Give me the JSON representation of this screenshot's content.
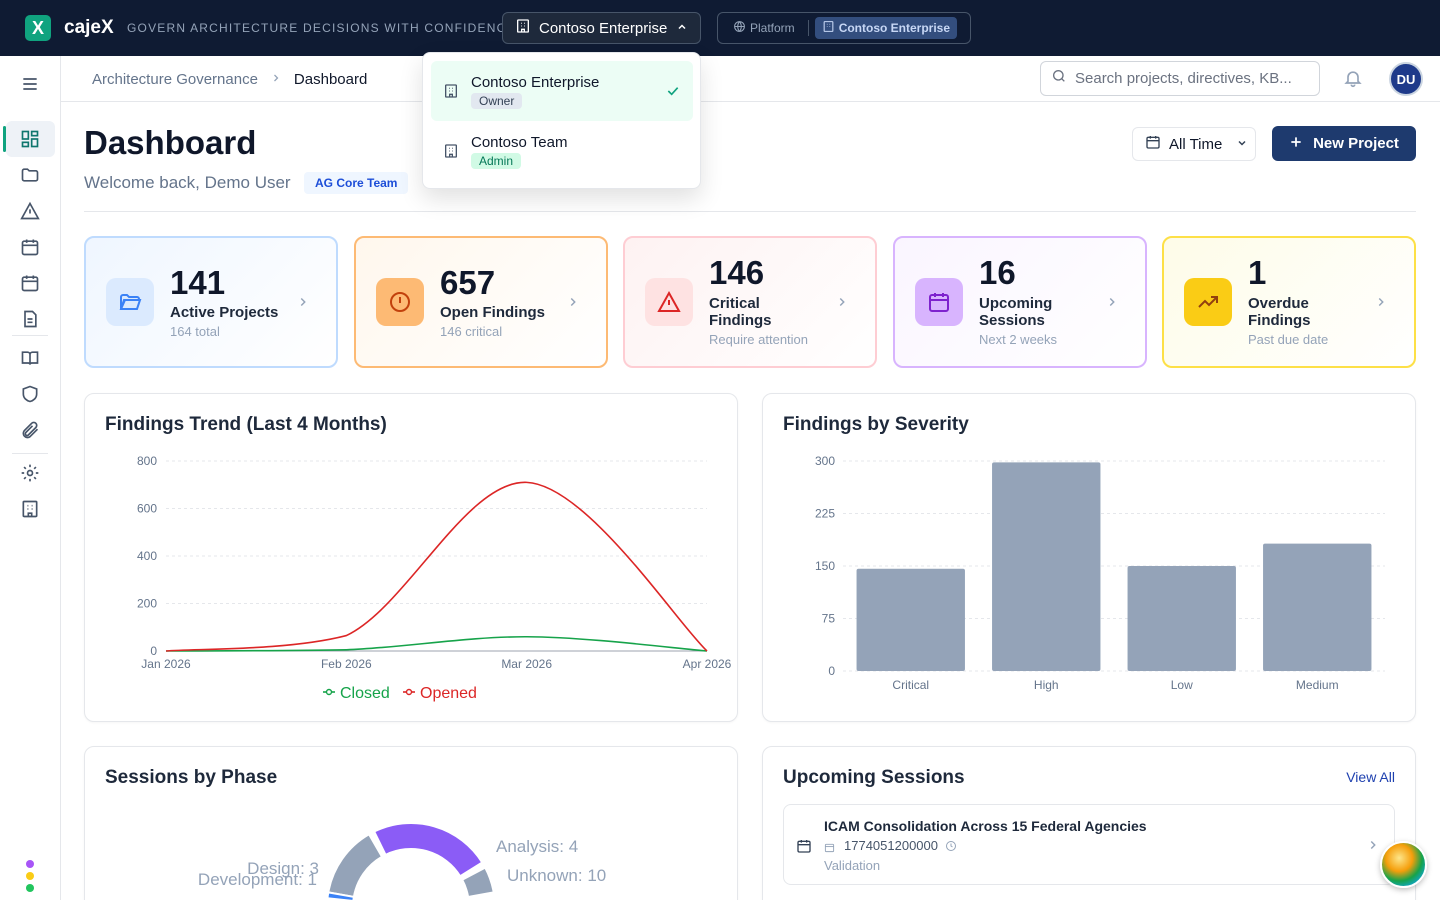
{
  "app": {
    "brand": "cajeX",
    "logo_letter": "X",
    "tagline": "GOVERN ARCHITECTURE DECISIONS WITH CONFIDENCE",
    "org_selector": "Contoso Enterprise",
    "context": {
      "platform": "Platform",
      "org": "Contoso Enterprise"
    }
  },
  "org_dropdown": {
    "items": [
      {
        "name": "Contoso Enterprise",
        "role": "Owner",
        "selected": true
      },
      {
        "name": "Contoso Team",
        "role": "Admin",
        "selected": false
      }
    ]
  },
  "breadcrumb": {
    "parent": "Architecture Governance",
    "current": "Dashboard"
  },
  "search": {
    "placeholder": "Search projects, directives, KB..."
  },
  "user": {
    "initials": "DU"
  },
  "page": {
    "title": "Dashboard",
    "welcome": "Welcome back, Demo User",
    "team_badge": "AG Core Team",
    "time_filter": "All Time",
    "new_project": "New Project"
  },
  "stats": [
    {
      "value": "141",
      "label": "Active Projects",
      "sub": "164 total",
      "color": "#3b82f6"
    },
    {
      "value": "657",
      "label": "Open Findings",
      "sub": "146 critical",
      "color": "#f97316"
    },
    {
      "value": "146",
      "label": "Critical Findings",
      "sub": "Require attention",
      "color": "#ef4444"
    },
    {
      "value": "16",
      "label": "Upcoming Sessions",
      "sub": "Next 2 weeks",
      "color": "#a855f7"
    },
    {
      "value": "1",
      "label": "Overdue Findings",
      "sub": "Past due date",
      "color": "#eab308"
    }
  ],
  "trend_card": {
    "title": "Findings Trend (Last 4 Months)"
  },
  "severity_card": {
    "title": "Findings by Severity"
  },
  "phase_card": {
    "title": "Sessions by Phase"
  },
  "upcoming_card": {
    "title": "Upcoming Sessions",
    "view_all": "View All",
    "items": [
      {
        "title": "ICAM Consolidation Across 15 Federal Agencies",
        "date": "1774051200000",
        "phase": "Validation"
      }
    ]
  },
  "chart_data": [
    {
      "type": "line",
      "title": "Findings Trend (Last 4 Months)",
      "x": [
        "Jan 2026",
        "Feb 2026",
        "Mar 2026",
        "Apr 2026"
      ],
      "ylim": [
        0,
        800
      ],
      "yticks": [
        0,
        200,
        400,
        600,
        800
      ],
      "series": [
        {
          "name": "Closed",
          "color": "#16a34a",
          "values": [
            0,
            5,
            60,
            0
          ]
        },
        {
          "name": "Opened",
          "color": "#dc2626",
          "values": [
            0,
            65,
            710,
            0
          ]
        }
      ],
      "legend": "bottom"
    },
    {
      "type": "bar",
      "title": "Findings by Severity",
      "categories": [
        "Critical",
        "High",
        "Low",
        "Medium"
      ],
      "values": [
        146,
        298,
        150,
        182
      ],
      "ylim": [
        0,
        300
      ],
      "yticks": [
        0,
        75,
        150,
        225,
        300
      ],
      "color": "#94a3b8"
    },
    {
      "type": "pie",
      "title": "Sessions by Phase",
      "labels": [
        "Analysis: 4",
        "Unknown: 10",
        "Design: 3",
        "Development: 1"
      ],
      "values": [
        4,
        10,
        3,
        1
      ]
    }
  ]
}
